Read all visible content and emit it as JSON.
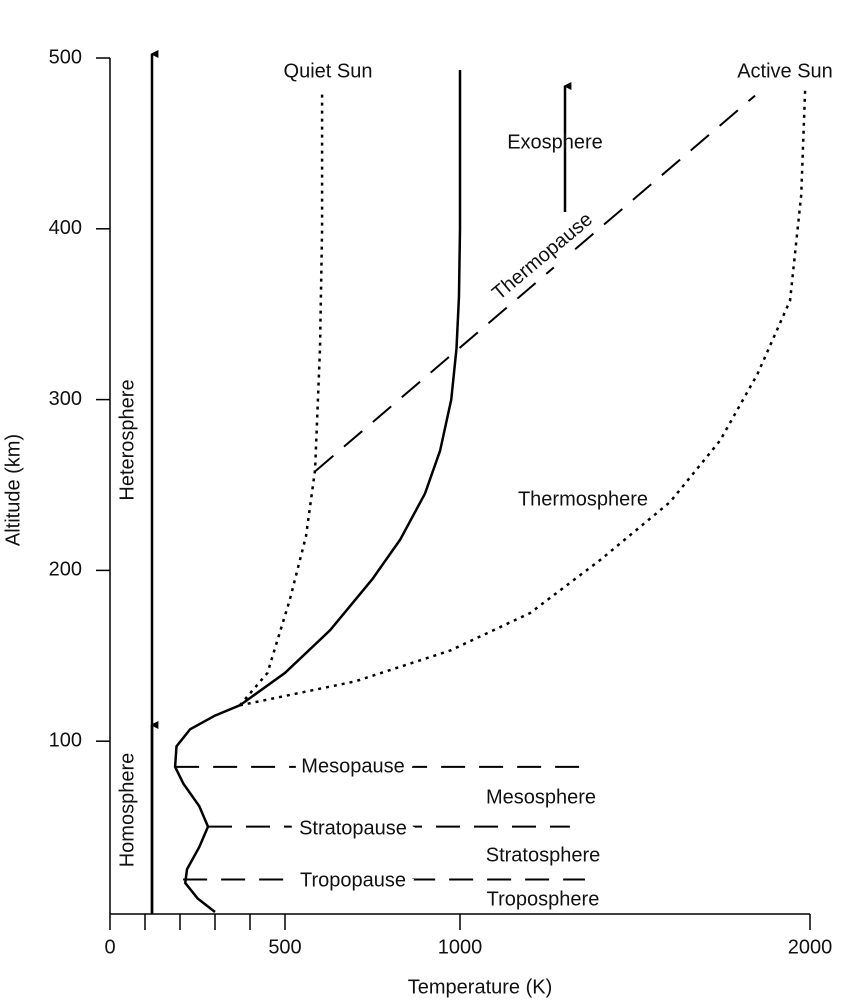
{
  "chart_data": {
    "type": "line",
    "xlabel": "Temperature (K)",
    "ylabel": "Altitude (km)",
    "xlim": [
      0,
      2000
    ],
    "ylim": [
      0,
      500
    ],
    "xticks": [
      0,
      500,
      1000,
      2000
    ],
    "xminorticks": [
      100,
      200,
      300,
      400
    ],
    "yticks": [
      100,
      200,
      300,
      400,
      500
    ],
    "color": "#000000",
    "series": [
      {
        "style": "solid",
        "x": [
          300,
          250,
          215,
          220,
          255,
          280,
          255,
          210,
          186,
          190,
          229,
          300,
          371,
          500,
          629,
          750,
          829,
          900,
          943,
          975,
          990,
          997,
          1000,
          1000,
          1000
        ],
        "values": [
          0,
          8,
          17,
          25,
          38,
          50,
          62,
          75,
          85,
          97,
          107,
          115,
          121,
          140,
          165,
          195,
          218,
          245,
          270,
          300,
          330,
          360,
          400,
          450,
          493
        ]
      },
      {
        "name": "Quiet Sun",
        "style": "dotted",
        "x": [
          371,
          450,
          514,
          560,
          586,
          600,
          606,
          606
        ],
        "values": [
          121,
          140,
          183,
          220,
          259,
          330,
          400,
          481
        ]
      },
      {
        "name": "Active Sun",
        "style": "dotted",
        "x": [
          371,
          700,
          971,
          1200,
          1400,
          1600,
          1743,
          1850,
          1943,
          1975,
          1986
        ],
        "values": [
          121,
          135,
          153,
          175,
          206,
          240,
          276,
          315,
          358,
          420,
          481
        ]
      },
      {
        "name": "Thermopause",
        "style": "dashed",
        "x": [
          586,
          1843
        ],
        "values": [
          258,
          478
        ]
      },
      {
        "name": "Mesopause",
        "style": "dashed",
        "x": [
          186,
          1357
        ],
        "values": [
          85,
          85
        ]
      },
      {
        "name": "Stratopause",
        "style": "dashed",
        "x": [
          280,
          1314
        ],
        "values": [
          50,
          50
        ]
      },
      {
        "name": "Tropopause",
        "style": "dashed",
        "x": [
          209,
          1357
        ],
        "values": [
          19,
          19
        ]
      }
    ],
    "annotations": [
      "Exosphere",
      "Thermosphere",
      "Mesosphere",
      "Stratosphere",
      "Troposphere",
      "Heterosphere",
      "Homosphere"
    ]
  }
}
